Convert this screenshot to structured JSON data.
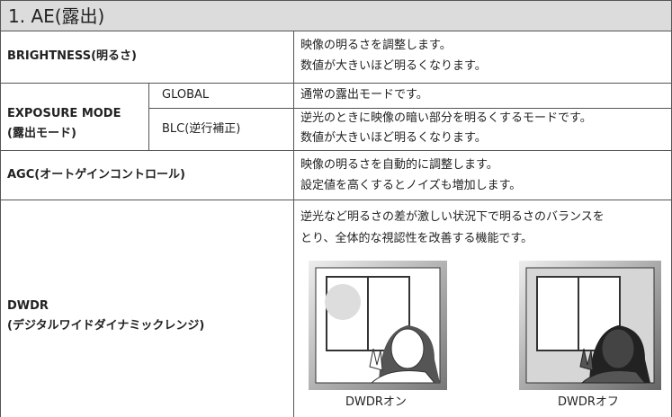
{
  "header": {
    "title": "1. AE(露出)"
  },
  "table": {
    "rows": [
      {
        "label": [
          "BRIGHTNESS(明るさ)"
        ],
        "description": [
          "映像の明るさを調整します。",
          "数値が大きいほど明るくなります。"
        ]
      },
      {
        "label": [
          "EXPOSURE MODE",
          "(露出モード)"
        ],
        "options": [
          {
            "name": "GLOBAL",
            "description": [
              "通常の露出モードです。"
            ]
          },
          {
            "name": "BLC(逆行補正)",
            "description": [
              "逆光のときに映像の暗い部分を明るくするモードです。",
              "数値が大きいほど明るくなります。"
            ]
          }
        ]
      },
      {
        "label": [
          "AGC(オートゲインコントロール)"
        ],
        "description": [
          "映像の明るさを自動的に調整します。",
          "設定値を高くするとノイズも増加します。"
        ]
      },
      {
        "label": [
          "DWDR",
          "(デジタルワイドダイナミックレンジ)"
        ],
        "description": [
          "逆光など明るさの差が激しい状況下で明るさのバランスを",
          "とり、全体的な視認性を改善する機能です。"
        ],
        "images": [
          {
            "caption": "DWDRオン"
          },
          {
            "caption": "DWDRオフ"
          }
        ]
      }
    ]
  }
}
